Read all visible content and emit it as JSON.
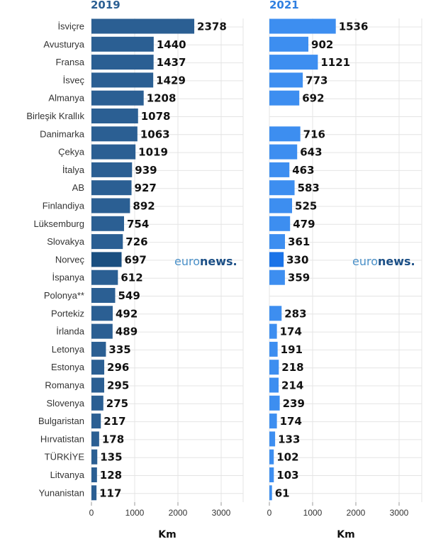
{
  "chart_data": [
    {
      "type": "bar",
      "orientation": "horizontal",
      "title": "2019",
      "xlabel": "Km",
      "xlim": [
        0,
        3500
      ],
      "xticks": [
        0,
        1000,
        2000,
        3000
      ],
      "categories": [
        "İsviçre",
        "Avusturya",
        "Fransa",
        "İsveç",
        "Almanya",
        "Birleşik Krallık",
        "Danimarka",
        "Çekya",
        "İtalya",
        "AB",
        "Finlandiya",
        "Lüksemburg",
        "Slovakya",
        "Norveç",
        "İspanya",
        "Polonya**",
        "Portekiz",
        "İrlanda",
        "Letonya",
        "Estonya",
        "Romanya",
        "Slovenya",
        "Bulgaristan",
        "Hırvatistan",
        "TÜRKİYE",
        "Litvanya",
        "Yunanistan"
      ],
      "values": [
        2378,
        1440,
        1437,
        1429,
        1208,
        1078,
        1063,
        1019,
        939,
        927,
        892,
        754,
        726,
        697,
        612,
        549,
        492,
        489,
        335,
        296,
        295,
        275,
        217,
        178,
        135,
        128,
        117
      ],
      "colors": {
        "bar": "#2b5f93",
        "highlight": "#1a4f80"
      },
      "grid": true
    },
    {
      "type": "bar",
      "orientation": "horizontal",
      "title": "2021",
      "xlabel": "Km",
      "xlim": [
        0,
        3500
      ],
      "xticks": [
        0,
        1000,
        2000,
        3000
      ],
      "categories": [
        "İsviçre",
        "Avusturya",
        "Fransa",
        "İsveç",
        "Almanya",
        "Birleşik Krallık",
        "Danimarka",
        "Çekya",
        "İtalya",
        "AB",
        "Finlandiya",
        "Lüksemburg",
        "Slovakya",
        "Norveç",
        "İspanya",
        "Polonya**",
        "Portekiz",
        "İrlanda",
        "Letonya",
        "Estonya",
        "Romanya",
        "Slovenya",
        "Bulgaristan",
        "Hırvatistan",
        "TÜRKİYE",
        "Litvanya",
        "Yunanistan"
      ],
      "values": [
        1536,
        902,
        1121,
        773,
        692,
        null,
        716,
        643,
        463,
        583,
        525,
        479,
        361,
        330,
        359,
        null,
        283,
        174,
        191,
        218,
        214,
        239,
        174,
        133,
        102,
        103,
        61
      ],
      "colors": {
        "bar": "#3d8ef0",
        "highlight": "#1a73e8"
      },
      "grid": true
    }
  ],
  "watermark": {
    "euro": "euro",
    "news": "news",
    "dot": ".",
    "euro_color": "#4a90c8",
    "news_color": "#1b4f86"
  },
  "colors": {
    "title_2019": "#2b5f93",
    "title_2021": "#2f7fe0",
    "grid": "#e4e4e4"
  }
}
